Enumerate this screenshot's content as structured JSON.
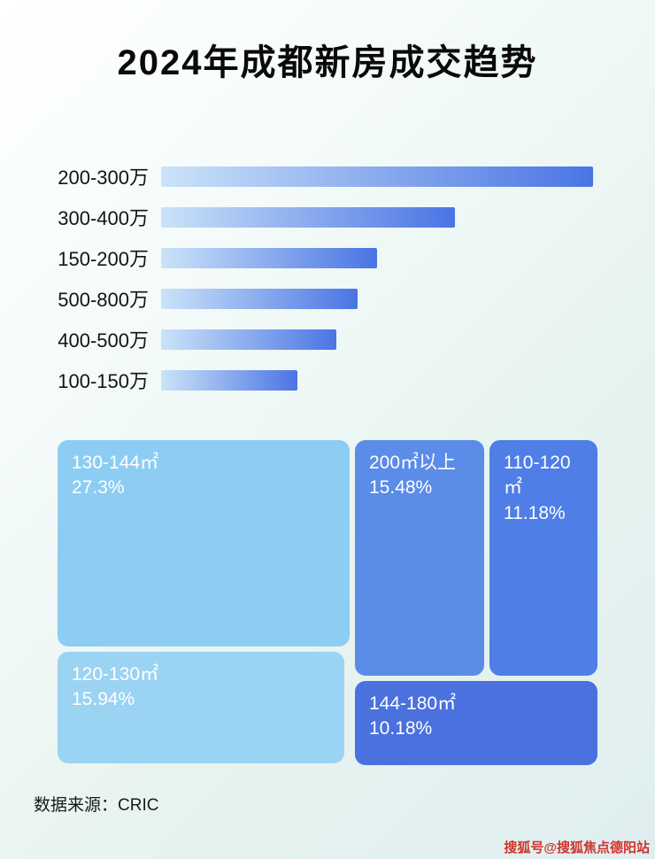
{
  "title": "2024年成都新房成交趋势",
  "colors": {
    "bar_gradient_start": "#cbe3f8",
    "bar_gradient_end": "#4a74e4",
    "label_text": "#141414",
    "watermark": "#d0342c"
  },
  "chart_data": [
    {
      "type": "bar",
      "orientation": "horizontal",
      "title": "2024年成都新房成交趋势",
      "categories": [
        "200-300万",
        "300-400万",
        "150-200万",
        "500-800万",
        "400-500万",
        "100-150万"
      ],
      "values_relative_pct": [
        100,
        68,
        50,
        45.5,
        40.5,
        31.5
      ],
      "value_labels_shown": false,
      "xlabel": "",
      "ylabel": "",
      "grid": false,
      "legend": false
    },
    {
      "type": "treemap",
      "items": [
        {
          "label": "130-144㎡",
          "value": "27.3%",
          "color": "#8dcdf3"
        },
        {
          "label": "120-130㎡",
          "value": "15.94%",
          "color": "#9bd3f3"
        },
        {
          "label": "200㎡以上",
          "value": "15.48%",
          "color": "#5a8ce8"
        },
        {
          "label": "110-120㎡",
          "value": "11.18%",
          "color": "#4e7ee6"
        },
        {
          "label": "144-180㎡",
          "value": "10.18%",
          "color": "#4a71dd"
        }
      ]
    }
  ],
  "footer": {
    "source": "数据来源：CRIC"
  },
  "watermark": {
    "text": "搜狐号@搜狐焦点德阳站"
  }
}
